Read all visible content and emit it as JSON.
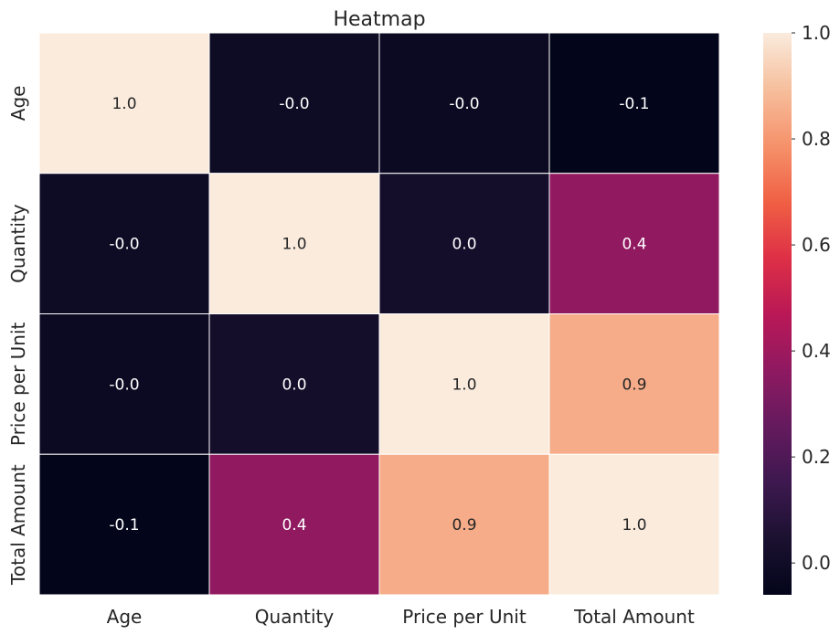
{
  "chart_data": {
    "type": "heatmap",
    "title": "Heatmap",
    "rows": [
      "Age",
      "Quantity",
      "Price per Unit",
      "Total Amount"
    ],
    "columns": [
      "Age",
      "Quantity",
      "Price per Unit",
      "Total Amount"
    ],
    "values": [
      [
        1.0,
        -0.01,
        -0.02,
        -0.06
      ],
      [
        -0.01,
        1.0,
        0.02,
        0.37
      ],
      [
        -0.02,
        0.02,
        1.0,
        0.85
      ],
      [
        -0.06,
        0.37,
        0.85,
        1.0
      ]
    ],
    "cell_labels": [
      [
        "1.0",
        "-0.0",
        "-0.0",
        "-0.1"
      ],
      [
        "-0.0",
        "1.0",
        "0.0",
        "0.4"
      ],
      [
        "-0.0",
        "0.0",
        "1.0",
        "0.9"
      ],
      [
        "-0.1",
        "0.4",
        "0.9",
        "1.0"
      ]
    ],
    "colorbar": {
      "min": -0.06,
      "max": 1.0,
      "ticks": [
        0.0,
        0.2,
        0.4,
        0.6,
        0.8,
        1.0
      ],
      "tick_labels": [
        "0.0",
        "0.2",
        "0.4",
        "0.6",
        "0.8",
        "1.0"
      ],
      "colormap": "rocket"
    },
    "xlabel": "",
    "ylabel": ""
  }
}
